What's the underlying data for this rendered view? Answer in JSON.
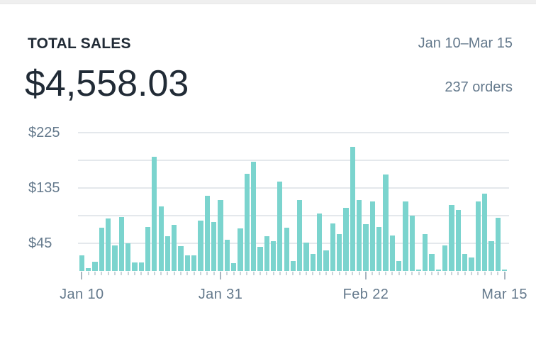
{
  "header": {
    "title": "TOTAL SALES",
    "amount": "$4,558.03",
    "date_range": "Jan 10–Mar 15",
    "orders": "237 orders"
  },
  "colors": {
    "bar": "#7bd4ce",
    "dark_text": "#212b36",
    "gray_text": "#64798c",
    "gridline": "#e4e8ec",
    "tick_minor": "#ccd4da",
    "tick_major": "#a9b5c0",
    "top_band": "#efefef",
    "background": "#ffffff"
  },
  "chart_data": {
    "type": "bar",
    "title": "Total sales by day",
    "unit": "$",
    "x_start": "Jan 10",
    "x_end": "Mar 15",
    "x_interval": "day",
    "n_bars": 65,
    "ylim": [
      0,
      225
    ],
    "grid": true,
    "legend": false,
    "gridline_values": [
      225,
      180,
      135,
      90,
      45
    ],
    "yticks": [
      {
        "value": 225,
        "label": "$225"
      },
      {
        "value": 135,
        "label": "$135"
      },
      {
        "value": 45,
        "label": "$45"
      }
    ],
    "xticks": [
      {
        "index": 0,
        "label": "Jan 10"
      },
      {
        "index": 21,
        "label": "Jan 31"
      },
      {
        "index": 43,
        "label": "Feb 22"
      },
      {
        "index": 64,
        "label": "Mar 15"
      }
    ],
    "values": [
      26,
      5,
      15,
      70,
      85,
      42,
      88,
      45,
      14,
      14,
      72,
      185,
      105,
      57,
      75,
      41,
      26,
      26,
      82,
      122,
      80,
      115,
      51,
      13,
      69,
      158,
      177,
      39,
      57,
      49,
      145,
      71,
      16,
      115,
      46,
      28,
      94,
      34,
      77,
      60,
      103,
      202,
      115,
      76,
      113,
      72,
      157,
      58,
      16,
      113,
      90,
      3,
      60,
      28,
      3,
      42,
      107,
      99,
      28,
      22,
      113,
      126,
      49,
      87,
      3
    ]
  }
}
